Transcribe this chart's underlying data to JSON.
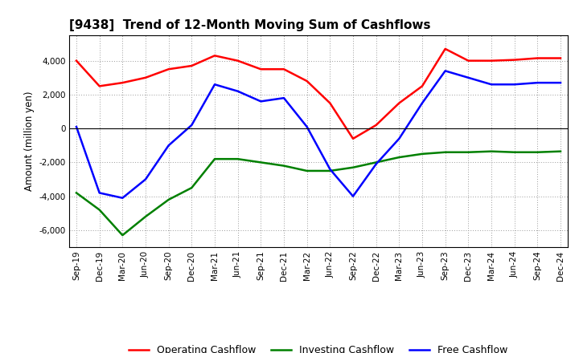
{
  "title": "[9438]  Trend of 12-Month Moving Sum of Cashflows",
  "ylabel": "Amount (million yen)",
  "xlabels": [
    "Sep-19",
    "Dec-19",
    "Mar-20",
    "Jun-20",
    "Sep-20",
    "Dec-20",
    "Mar-21",
    "Jun-21",
    "Sep-21",
    "Dec-21",
    "Mar-22",
    "Jun-22",
    "Sep-22",
    "Dec-22",
    "Mar-23",
    "Jun-23",
    "Sep-23",
    "Dec-23",
    "Mar-24",
    "Jun-24",
    "Sep-24",
    "Dec-24"
  ],
  "operating": [
    4000,
    2500,
    2700,
    3000,
    3500,
    3700,
    4300,
    4000,
    3500,
    3500,
    2800,
    1500,
    -600,
    200,
    1500,
    2500,
    4700,
    4000,
    4000,
    4050,
    4150,
    4150
  ],
  "investing": [
    -3800,
    -4800,
    -6300,
    -5200,
    -4200,
    -3500,
    -1800,
    -1800,
    -2000,
    -2200,
    -2500,
    -2500,
    -2300,
    -2000,
    -1700,
    -1500,
    -1400,
    -1400,
    -1350,
    -1400,
    -1400,
    -1350
  ],
  "free": [
    100,
    -3800,
    -4100,
    -3000,
    -1000,
    200,
    2600,
    2200,
    1600,
    1800,
    100,
    -2400,
    -4000,
    -2100,
    -600,
    1500,
    3400,
    3000,
    2600,
    2600,
    2700,
    2700
  ],
  "operating_color": "#ff0000",
  "investing_color": "#008000",
  "free_color": "#0000ff",
  "ylim": [
    -7000,
    5500
  ],
  "yticks": [
    -6000,
    -4000,
    -2000,
    0,
    2000,
    4000
  ],
  "background": "#ffffff",
  "grid_color": "#999999"
}
